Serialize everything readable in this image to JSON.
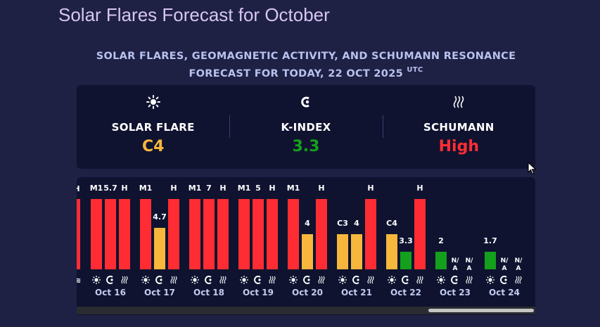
{
  "header": {
    "title": "Solar Flares Forecast for October"
  },
  "subtitle": {
    "line1": "SOLAR FLARES, GEOMAGNETIC ACTIVITY, AND SCHUMANN RESONANCE",
    "line2": "FORECAST FOR TODAY, 22 OCT 2025",
    "tz": "UTC"
  },
  "summary": [
    {
      "icon": "sun-icon",
      "glyph": "☀",
      "label": "SOLAR FLARE",
      "value": "C4",
      "color": "#f6b73c"
    },
    {
      "icon": "magnet-icon",
      "glyph": "C",
      "label": "K-INDEX",
      "value": "3.3",
      "color": "#14a01c"
    },
    {
      "icon": "wave-icon",
      "glyph": "≋",
      "label": "SCHUMANN",
      "value": "High",
      "color": "#ff2d33"
    }
  ],
  "colors": {
    "red": "#ff2d33",
    "yellow": "#f6b73c",
    "green": "#14a01c"
  },
  "chart_data": {
    "type": "bar",
    "series": [
      {
        "name": "SOLAR FLARE",
        "icon": "sun-icon"
      },
      {
        "name": "K-INDEX",
        "icon": "magnet-icon"
      },
      {
        "name": "SCHUMANN",
        "icon": "wave-icon"
      }
    ],
    "days": [
      {
        "date": "Oct 16",
        "bars": [
          {
            "label": "M1",
            "level": "high",
            "color": "red"
          },
          {
            "label": "5.7",
            "level": "high",
            "color": "red"
          },
          {
            "label": "H",
            "level": "high",
            "color": "red"
          }
        ]
      },
      {
        "date": "Oct 17",
        "bars": [
          {
            "label": "M1",
            "level": "high",
            "color": "red"
          },
          {
            "label": "4.7",
            "value": 4.7,
            "color": "yellow"
          },
          {
            "label": "H",
            "level": "high",
            "color": "red"
          }
        ]
      },
      {
        "date": "Oct 18",
        "bars": [
          {
            "label": "M1",
            "level": "high",
            "color": "red"
          },
          {
            "label": "7",
            "level": "high",
            "color": "red"
          },
          {
            "label": "H",
            "level": "high",
            "color": "red"
          }
        ]
      },
      {
        "date": "Oct 19",
        "bars": [
          {
            "label": "M1",
            "level": "high",
            "color": "red"
          },
          {
            "label": "5",
            "level": "high",
            "color": "red"
          },
          {
            "label": "H",
            "level": "high",
            "color": "red"
          }
        ]
      },
      {
        "date": "Oct 20",
        "bars": [
          {
            "label": "M1",
            "level": "high",
            "color": "red"
          },
          {
            "label": "4",
            "value": 4,
            "color": "yellow"
          },
          {
            "label": "H",
            "level": "high",
            "color": "red"
          }
        ]
      },
      {
        "date": "Oct 21",
        "bars": [
          {
            "label": "C3",
            "value": 4,
            "color": "yellow"
          },
          {
            "label": "4",
            "value": 4,
            "color": "yellow"
          },
          {
            "label": "H",
            "level": "high",
            "color": "red"
          }
        ]
      },
      {
        "date": "Oct 22",
        "bars": [
          {
            "label": "C4",
            "value": 4,
            "color": "yellow"
          },
          {
            "label": "3.3",
            "value": 2.0,
            "color": "green"
          },
          {
            "label": "H",
            "level": "high",
            "color": "red"
          }
        ]
      },
      {
        "date": "Oct 23",
        "bars": [
          {
            "label": "2",
            "value": 2.0,
            "color": "green"
          },
          {
            "label": "N/\nA",
            "na": true
          },
          {
            "label": "N/\nA",
            "na": true
          }
        ]
      },
      {
        "date": "Oct 24",
        "bars": [
          {
            "label": "1.7",
            "value": 2.0,
            "color": "green"
          },
          {
            "label": "N/\nA",
            "na": true
          },
          {
            "label": "N/\nA",
            "na": true
          }
        ]
      }
    ]
  }
}
